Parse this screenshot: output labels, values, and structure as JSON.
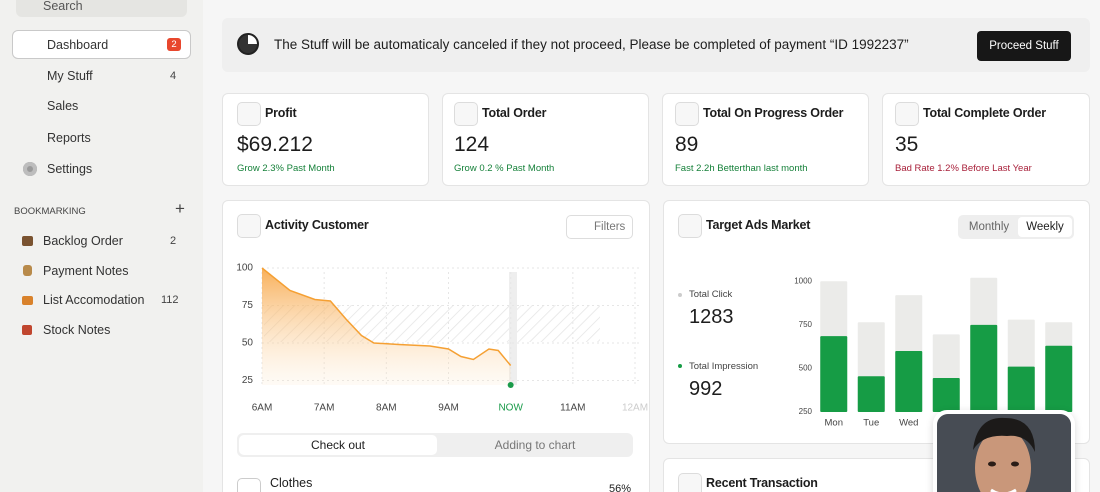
{
  "sidebar": {
    "search": "Search",
    "menu": [
      {
        "label": "Dashboard",
        "badge": 2
      },
      {
        "label": "My Stuff",
        "badge": 4
      },
      {
        "label": "Sales"
      },
      {
        "label": "Reports"
      },
      {
        "label": "Settings"
      }
    ],
    "bookmark_heading": "BOOKMARKING",
    "bookmarks": [
      {
        "label": "Backlog Order",
        "count": 2
      },
      {
        "label": "Payment Notes"
      },
      {
        "label": "List Accomodation",
        "count": 112
      },
      {
        "label": "Stock Notes"
      }
    ]
  },
  "banner": {
    "message": "The Stuff will be automaticaly canceled if they not proceed, Please be completed of payment “ID 1992237”",
    "button": "Proceed Stuff"
  },
  "stats": [
    {
      "title": "Profit",
      "value": "$69.212",
      "note": "Grow 2.3% Past Month"
    },
    {
      "title": "Total Order",
      "value": "124",
      "note": "Grow 0.2 % Past Month"
    },
    {
      "title": "Total On Progress Order",
      "value": "89",
      "note": "Fast 2.2h Betterthan last month"
    },
    {
      "title": "Total Complete Order",
      "value": "35",
      "note": "Bad Rate 1.2% Before Last Year"
    }
  ],
  "activity": {
    "title": "Activity Customer",
    "filter": "Filters",
    "chart_data": {
      "type": "area",
      "x": [
        6,
        6.45,
        6.85,
        7.1,
        7.35,
        7.6,
        7.8,
        8.2,
        8.7,
        9,
        9.2,
        9.4,
        9.65,
        9.8,
        10
      ],
      "values": [
        100,
        85,
        79,
        78,
        66,
        55,
        50,
        49,
        48,
        46,
        41,
        39,
        46,
        45,
        35
      ],
      "color": "#f5a033",
      "xlim": [
        6,
        12
      ],
      "ylim": [
        22,
        100
      ],
      "yticks": [
        25,
        50,
        75,
        100
      ],
      "xticks": [
        {
          "value": 6,
          "label": "6AM"
        },
        {
          "value": 7,
          "label": "7AM"
        },
        {
          "value": 8,
          "label": "8AM"
        },
        {
          "value": 9,
          "label": "9AM"
        },
        {
          "value": 10,
          "label": "NOW"
        },
        {
          "value": 11,
          "label": "11AM"
        },
        {
          "value": 12,
          "label": "12AM"
        }
      ],
      "grid": true
    },
    "tabs": [
      "Check out",
      "Adding to chart"
    ],
    "items": [
      {
        "label": "Clothes",
        "value": "56%"
      }
    ]
  },
  "ads": {
    "title": "Target Ads Market",
    "toggle": [
      "Monthly",
      "Weekly"
    ],
    "metrics": [
      {
        "label": "Total Click",
        "value": 1283
      },
      {
        "label": "Total Impression",
        "value": 992
      }
    ],
    "chart_data": {
      "type": "bar",
      "categories": [
        "Mon",
        "Tue",
        "Wed",
        null,
        null,
        null,
        null
      ],
      "series": [
        {
          "color": "#ebebe9",
          "values": [
            1000,
            765,
            920,
            695,
            1020,
            780,
            765
          ]
        },
        {
          "color": "#169c45",
          "values": [
            685,
            455,
            600,
            445,
            750,
            510,
            630
          ]
        }
      ],
      "ylim": [
        250,
        1030
      ],
      "yticks": [
        250,
        500,
        750,
        1000
      ]
    }
  },
  "recent": {
    "title": "Recent Transaction"
  }
}
